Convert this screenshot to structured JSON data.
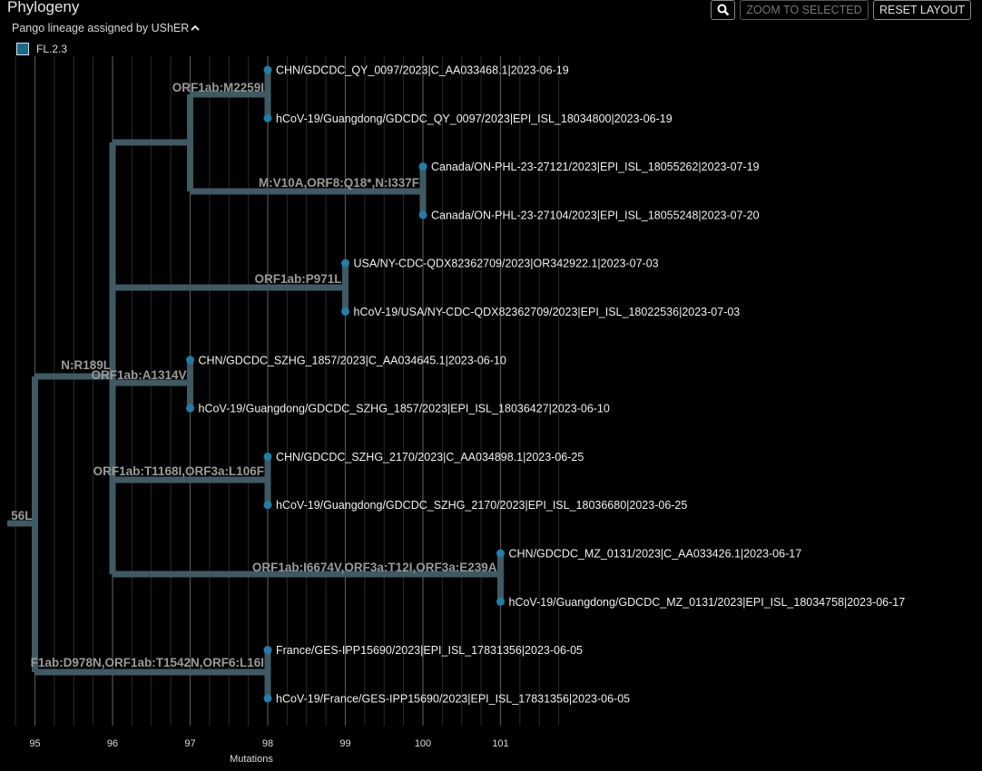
{
  "header": {
    "title": "Phylogeny",
    "subtitle": "Pango lineage assigned by UShER",
    "zoom_label": "ZOOM TO SELECTED",
    "reset_label": "RESET LAYOUT"
  },
  "legend": {
    "items": [
      {
        "label": "FL.2.3",
        "color": "#1b6a8a"
      }
    ]
  },
  "colors": {
    "branch": "#3f5a63",
    "node": "#1f7fa8",
    "grid": "#2a2a2a",
    "grid_major": "#555555"
  },
  "axis": {
    "label": "Mutations",
    "ticks": [
      "95",
      "96",
      "97",
      "98",
      "99",
      "100",
      "101"
    ]
  },
  "tree": {
    "tips": [
      "CHN/GDCDC_QY_0097/2023|C_AA033468.1|2023-06-19",
      "hCoV-19/Guangdong/GDCDC_QY_0097/2023|EPI_ISL_18034800|2023-06-19",
      "Canada/ON-PHL-23-27121/2023|EPI_ISL_18055262|2023-07-19",
      "Canada/ON-PHL-23-27104/2023|EPI_ISL_18055248|2023-07-20",
      "USA/NY-CDC-QDX82362709/2023|OR342922.1|2023-07-03",
      "hCoV-19/USA/NY-CDC-QDX82362709/2023|EPI_ISL_18022536|2023-07-03",
      "CHN/GDCDC_SZHG_1857/2023|C_AA034645.1|2023-06-10",
      "hCoV-19/Guangdong/GDCDC_SZHG_1857/2023|EPI_ISL_18036427|2023-06-10",
      "CHN/GDCDC_SZHG_2170/2023|C_AA034898.1|2023-06-25",
      "hCoV-19/Guangdong/GDCDC_SZHG_2170/2023|EPI_ISL_18036680|2023-06-25",
      "CHN/GDCDC_MZ_0131/2023|C_AA033426.1|2023-06-17",
      "hCoV-19/Guangdong/GDCDC_MZ_0131/2023|EPI_ISL_18034758|2023-06-17",
      "France/GES-IPP15690/2023|EPI_ISL_17831356|2023-06-05",
      "hCoV-19/France/GES-IPP15690/2023|EPI_ISL_17831356|2023-06-05"
    ],
    "mutation_labels": [
      "ORF1ab:M2259I",
      "M:V10A,ORF8:Q18*,N:I337F",
      "ORF1ab:P971L",
      "N:R189L",
      "ORF1ab:A1314V",
      "ORF1ab:T1168I,ORF3a:L106F",
      "ORF1ab:I6674V,ORF3a:T12I,ORF3a:E239A",
      "56L",
      "F1ab:D978N,ORF1ab:T1542N,ORF6:L16I"
    ]
  }
}
